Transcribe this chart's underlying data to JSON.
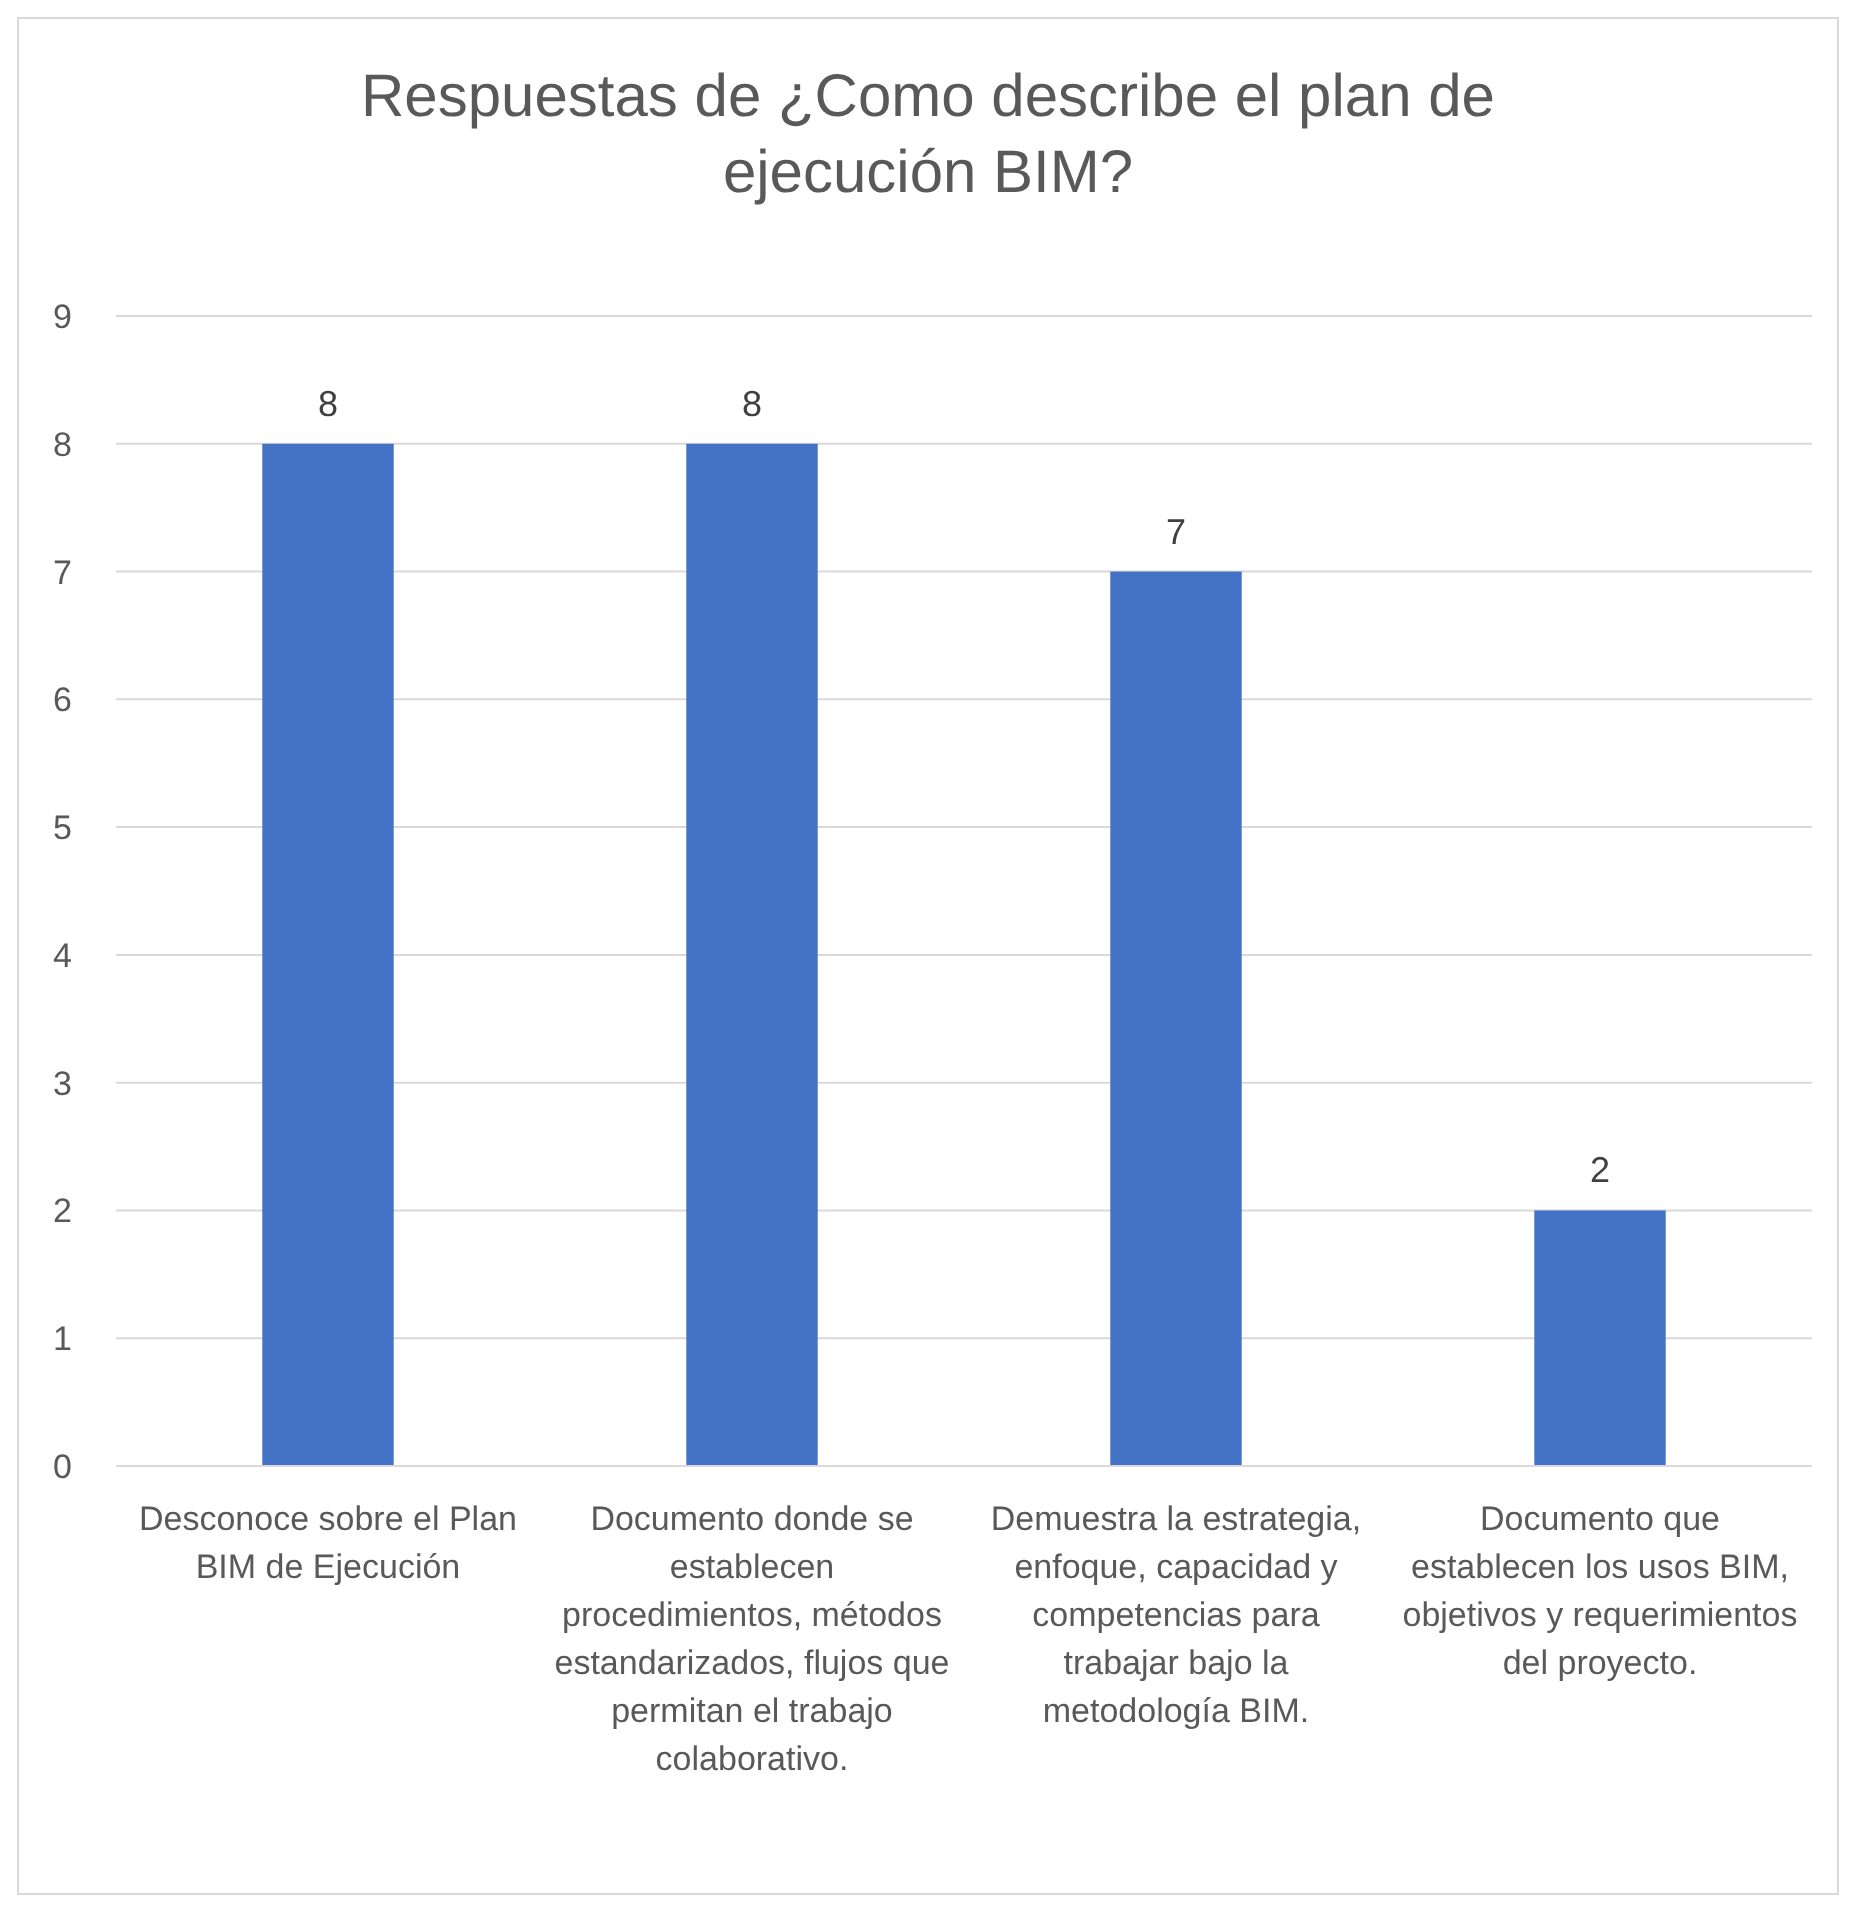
{
  "chart_data": {
    "type": "bar",
    "title": "Respuestas de ¿Como describe el plan de ejecución BIM?",
    "categories": [
      "Desconoce sobre el Plan BIM de Ejecución",
      "Documento donde se establecen procedimientos, métodos estandarizados, flujos que permitan el trabajo colaborativo.",
      "Demuestra la estrategia, enfoque, capacidad y competencias para trabajar bajo la metodología BIM.",
      "Documento que establecen los usos BIM, objetivos y requerimientos del proyecto."
    ],
    "values": [
      8,
      8,
      7,
      2
    ],
    "color": "#4472c4",
    "ylim": [
      0,
      9
    ],
    "yticks": [
      0,
      1,
      2,
      3,
      4,
      5,
      6,
      7,
      8,
      9
    ],
    "grid": "y",
    "data_labels": true
  }
}
